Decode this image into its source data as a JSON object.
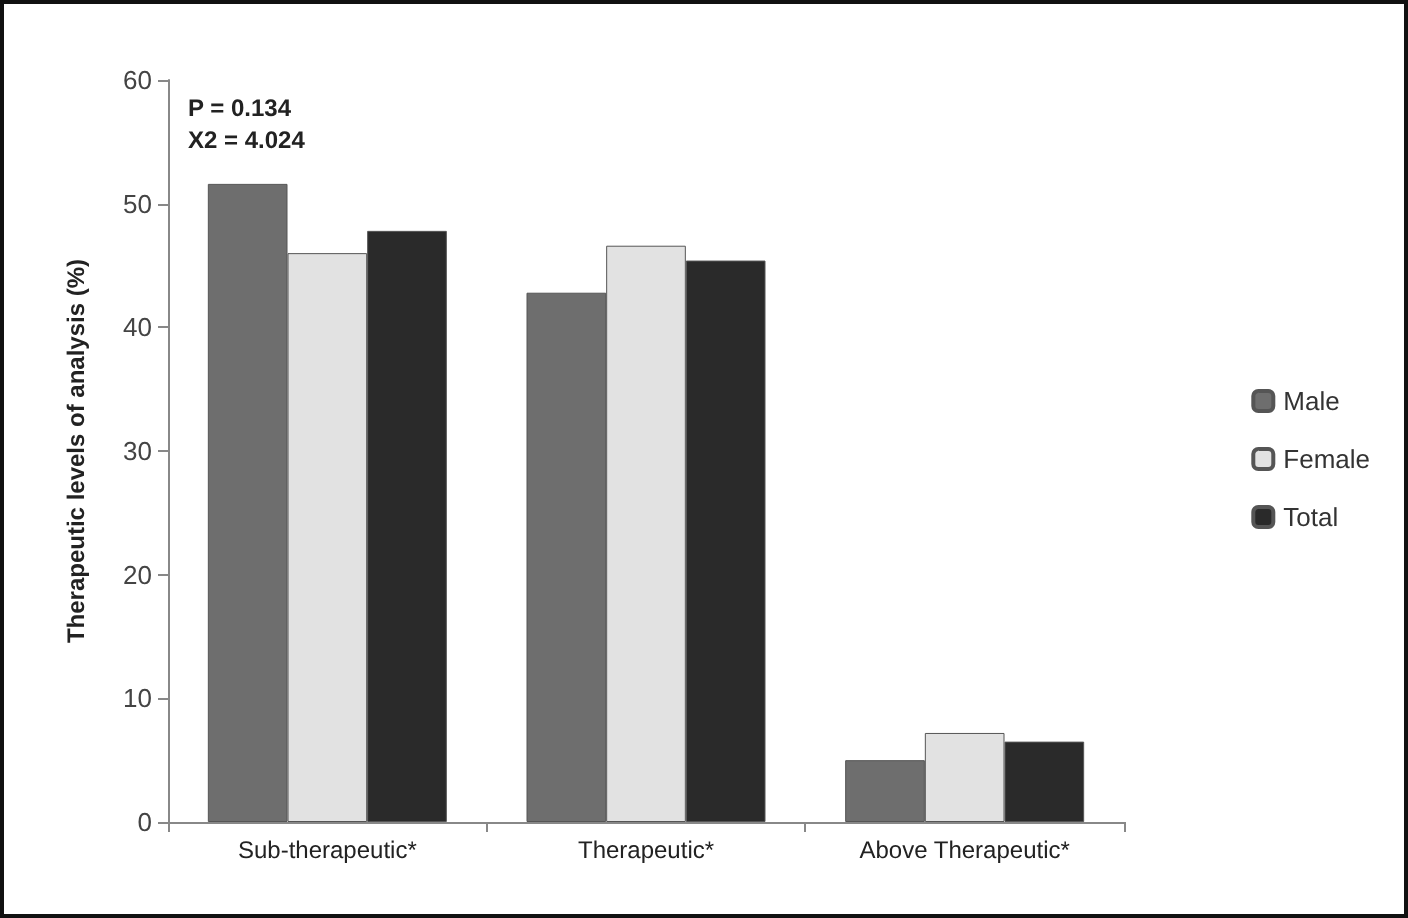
{
  "chart_data": {
    "type": "bar",
    "categories": [
      "Sub-therapeutic*",
      "Therapeutic*",
      "Above Therapeutic*"
    ],
    "series": [
      {
        "name": "Male",
        "color": "#6e6e6e",
        "values": [
          51.6,
          42.8,
          5.0
        ]
      },
      {
        "name": "Female",
        "color": "#e2e2e2",
        "values": [
          46.0,
          46.6,
          7.2
        ]
      },
      {
        "name": "Total",
        "color": "#2a2a2a",
        "values": [
          47.8,
          45.4,
          6.5
        ]
      }
    ],
    "ylabel": "Therapeutic levels of analysis (%)",
    "ylim": [
      0,
      60
    ],
    "yticks": [
      0,
      10,
      20,
      30,
      40,
      50,
      60
    ],
    "annotations": [
      "P = 0.134\nX2 = 4.024"
    ],
    "grid": false,
    "legend": "right"
  }
}
